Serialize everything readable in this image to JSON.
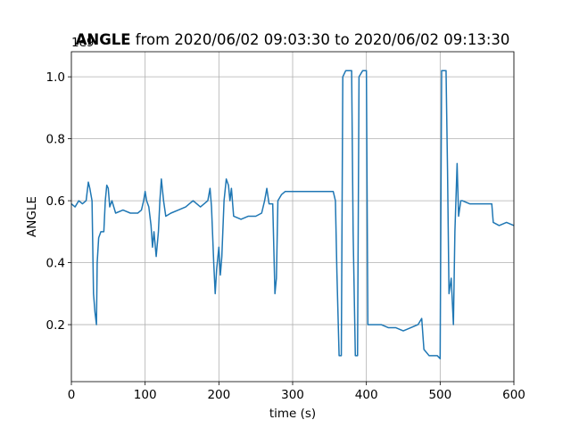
{
  "chart_data": {
    "type": "line",
    "title_bold": "ANGLE",
    "title": "from 2020/06/02 09:03:30 to 2020/06/02 09:13:30",
    "offset_label": "1e9",
    "x_label": "time (s)",
    "y_label": "ANGLE",
    "x": [
      0,
      5,
      10,
      15,
      20,
      23,
      25,
      28,
      30,
      32,
      34,
      35,
      37,
      40,
      44,
      46,
      48,
      50,
      52,
      55,
      60,
      70,
      80,
      90,
      95,
      98,
      100,
      102,
      105,
      108,
      110,
      112,
      115,
      118,
      120,
      122,
      125,
      128,
      135,
      145,
      155,
      165,
      175,
      185,
      188,
      190,
      193,
      195,
      197,
      200,
      202,
      204,
      207,
      210,
      213,
      215,
      217,
      220,
      230,
      240,
      250,
      258,
      262,
      265,
      268,
      273,
      276,
      278,
      280,
      285,
      290,
      300,
      320,
      340,
      355,
      358,
      360,
      363,
      366,
      368,
      372,
      380,
      382,
      385,
      388,
      390,
      395,
      400,
      402,
      405,
      410,
      420,
      430,
      440,
      450,
      460,
      470,
      475,
      478,
      485,
      490,
      496,
      500,
      502,
      508,
      510,
      512,
      515,
      518,
      520,
      523,
      525,
      528,
      530,
      540,
      560,
      570,
      572,
      580,
      590,
      600
    ],
    "series": [
      {
        "name": "ANGLE",
        "color": "#1f77b4",
        "values": [
          0.59,
          0.58,
          0.6,
          0.59,
          0.6,
          0.66,
          0.64,
          0.6,
          0.3,
          0.24,
          0.2,
          0.4,
          0.48,
          0.5,
          0.5,
          0.6,
          0.65,
          0.64,
          0.58,
          0.6,
          0.56,
          0.57,
          0.56,
          0.56,
          0.57,
          0.6,
          0.63,
          0.6,
          0.58,
          0.52,
          0.45,
          0.5,
          0.42,
          0.5,
          0.6,
          0.67,
          0.6,
          0.55,
          0.56,
          0.57,
          0.58,
          0.6,
          0.58,
          0.6,
          0.64,
          0.58,
          0.4,
          0.3,
          0.38,
          0.45,
          0.36,
          0.42,
          0.6,
          0.67,
          0.65,
          0.6,
          0.64,
          0.55,
          0.54,
          0.55,
          0.55,
          0.56,
          0.6,
          0.64,
          0.59,
          0.59,
          0.3,
          0.35,
          0.6,
          0.62,
          0.63,
          0.63,
          0.63,
          0.63,
          0.63,
          0.6,
          0.37,
          0.1,
          0.1,
          1.0,
          1.02,
          1.02,
          0.5,
          0.1,
          0.1,
          1.0,
          1.02,
          1.02,
          0.2,
          0.2,
          0.2,
          0.2,
          0.19,
          0.19,
          0.18,
          0.19,
          0.2,
          0.22,
          0.12,
          0.1,
          0.1,
          0.1,
          0.09,
          1.02,
          1.02,
          0.7,
          0.3,
          0.35,
          0.2,
          0.5,
          0.72,
          0.55,
          0.6,
          0.6,
          0.59,
          0.59,
          0.59,
          0.53,
          0.52,
          0.53,
          0.52
        ]
      }
    ],
    "xlim": [
      0,
      600
    ],
    "xticks": [
      0,
      100,
      200,
      300,
      400,
      500,
      600
    ],
    "ylim": [
      0.016,
      1.081
    ],
    "yticks": [
      0.2,
      0.4,
      0.6,
      0.8,
      {
        "value": 1,
        "label": "1.0"
      }
    ],
    "grid": true
  }
}
